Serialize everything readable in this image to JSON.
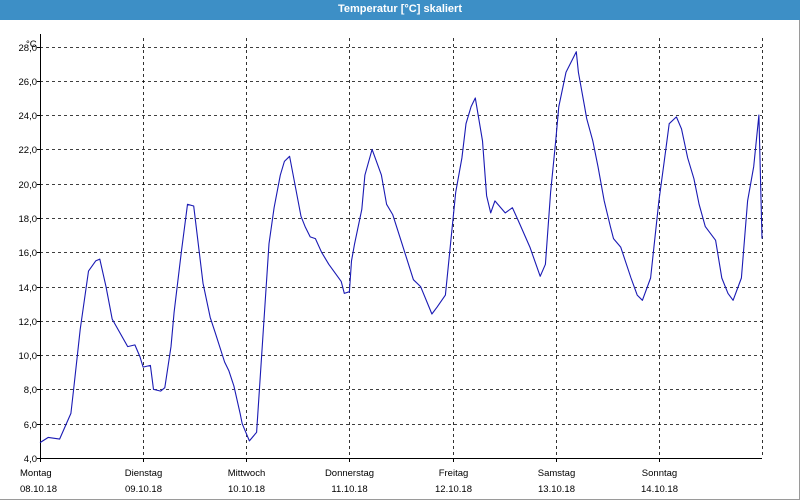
{
  "window": {
    "title": "Temperatur [°C] skaliert"
  },
  "chart_data": {
    "type": "line",
    "title": "Temperatur [°C] skaliert",
    "ylabel": "°C",
    "ylim": [
      4.0,
      28.5
    ],
    "yticks": [
      4.0,
      6.0,
      8.0,
      10.0,
      12.0,
      14.0,
      16.0,
      18.0,
      20.0,
      22.0,
      24.0,
      26.0,
      28.0
    ],
    "ytick_labels": [
      "4,0",
      "6,0",
      "8,0",
      "10,0",
      "12,0",
      "14,0",
      "16,0",
      "18,0",
      "20,0",
      "22,0",
      "24,0",
      "26,0",
      "28,0"
    ],
    "xlim": [
      0,
      7
    ],
    "x_unit": "days since Montag 08.10.18 00:00",
    "days": [
      {
        "weekday": "Montag",
        "date": "08.10.18"
      },
      {
        "weekday": "Dienstag",
        "date": "09.10.18"
      },
      {
        "weekday": "Mittwoch",
        "date": "10.10.18"
      },
      {
        "weekday": "Donnerstag",
        "date": "11.10.18"
      },
      {
        "weekday": "Freitag",
        "date": "12.10.18"
      },
      {
        "weekday": "Samstag",
        "date": "13.10.18"
      },
      {
        "weekday": "Sonntag",
        "date": "14.10.18"
      }
    ],
    "grid": true,
    "colors": {
      "line": "#1a1ab4",
      "grid": "#000000",
      "title_bar": "#3d8fc6"
    },
    "series": [
      {
        "name": "Temperatur",
        "x": [
          0.0,
          0.08,
          0.19,
          0.3,
          0.33,
          0.39,
          0.47,
          0.54,
          0.58,
          0.64,
          0.7,
          0.85,
          0.92,
          0.97,
          1.0,
          1.07,
          1.1,
          1.17,
          1.21,
          1.27,
          1.3,
          1.37,
          1.43,
          1.49,
          1.58,
          1.65,
          1.7,
          1.79,
          1.83,
          1.88,
          1.94,
          1.96,
          2.03,
          2.1,
          2.16,
          2.22,
          2.27,
          2.33,
          2.37,
          2.42,
          2.53,
          2.57,
          2.62,
          2.67,
          2.73,
          2.8,
          2.92,
          2.95,
          3.0,
          3.02,
          3.05,
          3.12,
          3.15,
          3.22,
          3.31,
          3.36,
          3.42,
          3.51,
          3.62,
          3.69,
          3.8,
          3.85,
          3.93,
          4.03,
          4.09,
          4.13,
          4.18,
          4.22,
          4.29,
          4.33,
          4.37,
          4.41,
          4.51,
          4.58,
          4.64,
          4.75,
          4.85,
          4.9,
          4.95,
          5.0,
          5.03,
          5.1,
          5.2,
          5.22,
          5.28,
          5.3,
          5.36,
          5.41,
          5.47,
          5.53,
          5.56,
          5.63,
          5.73,
          5.79,
          5.84,
          5.92,
          6.0,
          6.05,
          6.1,
          6.17,
          6.22,
          6.28,
          6.34,
          6.39,
          6.45,
          6.55,
          6.61,
          6.67,
          6.72,
          6.8,
          6.86,
          6.92,
          6.97,
          7.0
        ],
        "values": [
          4.9,
          5.2,
          5.1,
          6.6,
          8.2,
          11.5,
          14.9,
          15.5,
          15.6,
          14.0,
          12.1,
          10.5,
          10.6,
          9.9,
          9.3,
          9.4,
          8.0,
          7.9,
          8.1,
          10.5,
          12.5,
          16.0,
          18.8,
          18.7,
          14.2,
          12.2,
          11.3,
          9.6,
          9.1,
          8.2,
          6.6,
          6.0,
          5.0,
          5.5,
          11.0,
          16.5,
          18.6,
          20.5,
          21.3,
          21.6,
          18.1,
          17.5,
          16.9,
          16.8,
          16.0,
          15.3,
          14.3,
          13.6,
          13.7,
          15.5,
          16.5,
          18.5,
          20.5,
          22.0,
          20.5,
          18.8,
          18.2,
          16.5,
          14.4,
          14.0,
          12.4,
          12.8,
          13.5,
          19.5,
          21.5,
          23.5,
          24.5,
          25.0,
          22.5,
          19.3,
          18.3,
          19.0,
          18.3,
          18.6,
          17.8,
          16.3,
          14.6,
          15.3,
          19.5,
          22.5,
          24.5,
          26.5,
          27.7,
          26.5,
          24.5,
          23.8,
          22.5,
          21.0,
          19.0,
          17.5,
          16.8,
          16.3,
          14.5,
          13.5,
          13.2,
          14.5,
          19.0,
          21.2,
          23.5,
          23.9,
          23.2,
          21.5,
          20.3,
          18.8,
          17.5,
          16.7,
          14.5,
          13.6,
          13.2,
          14.5,
          19.0,
          21.0,
          24.0,
          16.8
        ]
      }
    ]
  }
}
